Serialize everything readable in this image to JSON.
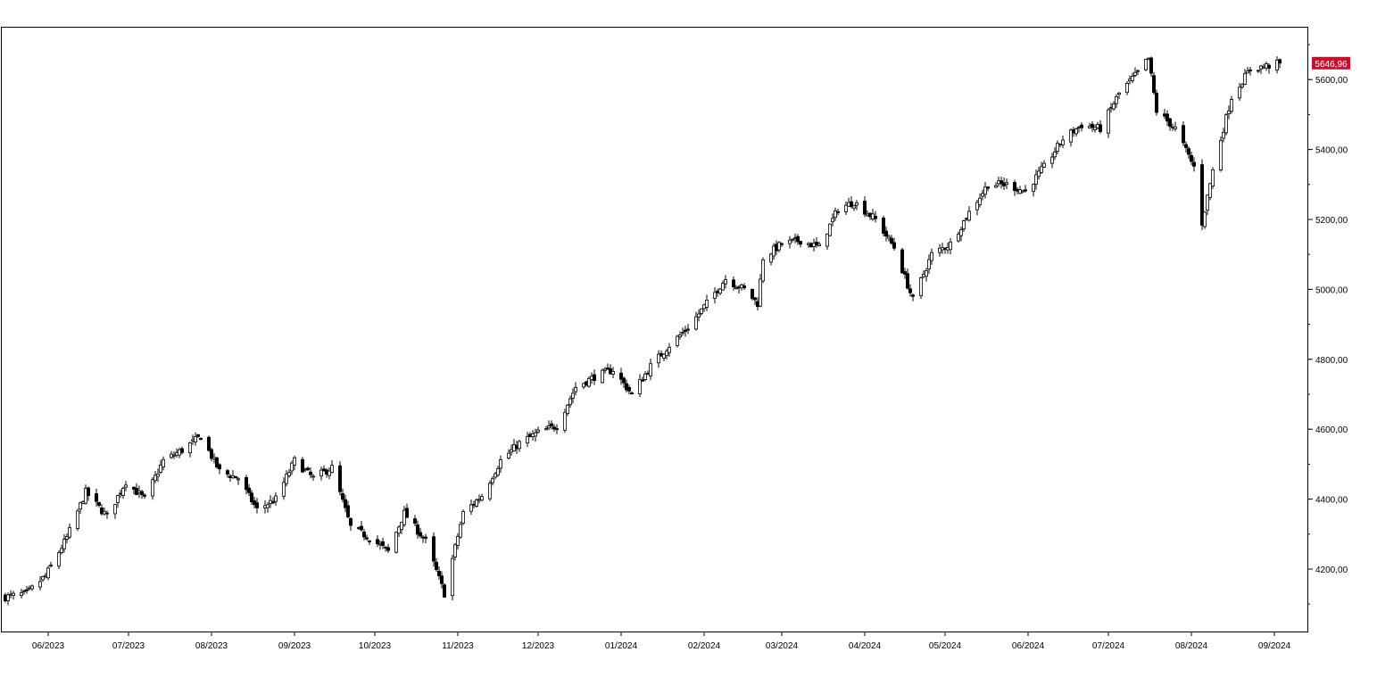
{
  "chart_data": {
    "type": "candlestick",
    "title": "",
    "xlabel": "",
    "ylabel": "",
    "x_range": [
      "2023-05-16",
      "2024-09-03"
    ],
    "ylim": [
      4070,
      5730
    ],
    "grid": false,
    "legend": "none",
    "colors": {
      "up_fill": "#ffffff",
      "down_fill": "#000000",
      "outline": "#000000",
      "last_value_bg": "#c8102e"
    },
    "last_value": 5646.96,
    "last_value_label": "5646,96",
    "x_ticks": [
      {
        "date": "2023-06-01",
        "label": "06/2023"
      },
      {
        "date": "2023-07-01",
        "label": "07/2023"
      },
      {
        "date": "2023-08-01",
        "label": "08/2023"
      },
      {
        "date": "2023-09-01",
        "label": "09/2023"
      },
      {
        "date": "2023-10-01",
        "label": "10/2023"
      },
      {
        "date": "2023-11-01",
        "label": "11/2023"
      },
      {
        "date": "2023-12-01",
        "label": "12/2023"
      },
      {
        "date": "2024-01-01",
        "label": "01/2024"
      },
      {
        "date": "2024-02-01",
        "label": "02/2024"
      },
      {
        "date": "2024-03-01",
        "label": "03/2024"
      },
      {
        "date": "2024-04-01",
        "label": "04/2024"
      },
      {
        "date": "2024-05-01",
        "label": "05/2024"
      },
      {
        "date": "2024-06-01",
        "label": "06/2024"
      },
      {
        "date": "2024-07-01",
        "label": "07/2024"
      },
      {
        "date": "2024-08-01",
        "label": "08/2024"
      },
      {
        "date": "2024-09-01",
        "label": "09/2024"
      }
    ],
    "y_ticks": [
      {
        "value": 4200,
        "label": "4200,00"
      },
      {
        "value": 4400,
        "label": "4400,00"
      },
      {
        "value": 4600,
        "label": "4600,00"
      },
      {
        "value": 4800,
        "label": "4800,00"
      },
      {
        "value": 5000,
        "label": "5000,00"
      },
      {
        "value": 5200,
        "label": "5200,00"
      },
      {
        "value": 5400,
        "label": "5400,00"
      },
      {
        "value": 5600,
        "label": "5600,00"
      }
    ],
    "close_anchors": [
      [
        "2023-05-16",
        4120
      ],
      [
        "2023-05-24",
        4130
      ],
      [
        "2023-05-31",
        4180
      ],
      [
        "2023-06-08",
        4290
      ],
      [
        "2023-06-15",
        4420
      ],
      [
        "2023-06-23",
        4350
      ],
      [
        "2023-06-30",
        4450
      ],
      [
        "2023-07-07",
        4400
      ],
      [
        "2023-07-14",
        4510
      ],
      [
        "2023-07-21",
        4540
      ],
      [
        "2023-07-28",
        4580
      ],
      [
        "2023-08-04",
        4480
      ],
      [
        "2023-08-11",
        4460
      ],
      [
        "2023-08-18",
        4370
      ],
      [
        "2023-08-25",
        4400
      ],
      [
        "2023-09-01",
        4510
      ],
      [
        "2023-09-08",
        4460
      ],
      [
        "2023-09-15",
        4490
      ],
      [
        "2023-09-22",
        4320
      ],
      [
        "2023-09-29",
        4290
      ],
      [
        "2023-10-06",
        4250
      ],
      [
        "2023-10-12",
        4360
      ],
      [
        "2023-10-20",
        4280
      ],
      [
        "2023-10-27",
        4130
      ],
      [
        "2023-11-03",
        4360
      ],
      [
        "2023-11-10",
        4410
      ],
      [
        "2023-11-17",
        4510
      ],
      [
        "2023-11-24",
        4560
      ],
      [
        "2023-12-01",
        4590
      ],
      [
        "2023-12-08",
        4610
      ],
      [
        "2023-12-15",
        4720
      ],
      [
        "2023-12-22",
        4750
      ],
      [
        "2023-12-29",
        4770
      ],
      [
        "2024-01-05",
        4700
      ],
      [
        "2024-01-12",
        4780
      ],
      [
        "2024-01-19",
        4840
      ],
      [
        "2024-01-26",
        4890
      ],
      [
        "2024-02-02",
        4960
      ],
      [
        "2024-02-09",
        5030
      ],
      [
        "2024-02-16",
        5000
      ],
      [
        "2024-02-21",
        4960
      ],
      [
        "2024-02-23",
        5090
      ],
      [
        "2024-03-01",
        5130
      ],
      [
        "2024-03-08",
        5140
      ],
      [
        "2024-03-15",
        5120
      ],
      [
        "2024-03-22",
        5230
      ],
      [
        "2024-03-28",
        5250
      ],
      [
        "2024-04-05",
        5200
      ],
      [
        "2024-04-12",
        5120
      ],
      [
        "2024-04-19",
        4970
      ],
      [
        "2024-04-26",
        5100
      ],
      [
        "2024-05-03",
        5130
      ],
      [
        "2024-05-10",
        5220
      ],
      [
        "2024-05-17",
        5300
      ],
      [
        "2024-05-24",
        5300
      ],
      [
        "2024-05-31",
        5280
      ],
      [
        "2024-06-07",
        5350
      ],
      [
        "2024-06-14",
        5430
      ],
      [
        "2024-06-21",
        5470
      ],
      [
        "2024-06-28",
        5460
      ],
      [
        "2024-07-05",
        5560
      ],
      [
        "2024-07-12",
        5620
      ],
      [
        "2024-07-16",
        5660
      ],
      [
        "2024-07-19",
        5510
      ],
      [
        "2024-07-26",
        5460
      ],
      [
        "2024-08-02",
        5350
      ],
      [
        "2024-08-05",
        5190
      ],
      [
        "2024-08-09",
        5340
      ],
      [
        "2024-08-16",
        5550
      ],
      [
        "2024-08-23",
        5630
      ],
      [
        "2024-08-30",
        5640
      ],
      [
        "2024-09-03",
        5646.96
      ]
    ]
  }
}
